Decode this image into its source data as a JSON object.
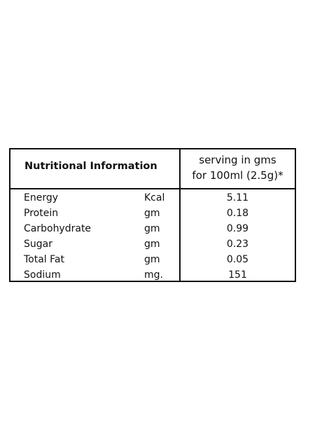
{
  "table": {
    "title": "Nutritional Information",
    "serving_line1": "serving in gms",
    "serving_line2": "for 100ml (2.5g)*",
    "rows": [
      {
        "name": "Energy",
        "unit": "Kcal",
        "value": "5.11"
      },
      {
        "name": "Protein",
        "unit": "gm",
        "value": "0.18"
      },
      {
        "name": "Carbohydrate",
        "unit": "gm",
        "value": "0.99"
      },
      {
        "name": "Sugar",
        "unit": "gm",
        "value": "0.23"
      },
      {
        "name": "Total Fat",
        "unit": "gm",
        "value": "0.05"
      },
      {
        "name": "Sodium",
        "unit": "mg.",
        "value": "151"
      }
    ]
  }
}
